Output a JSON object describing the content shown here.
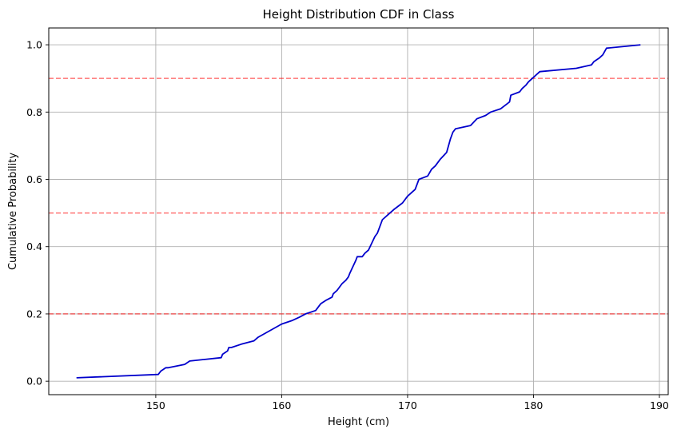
{
  "chart_data": {
    "type": "line",
    "title": "Height Distribution CDF in Class",
    "xlabel": "Height (cm)",
    "ylabel": "Cumulative Probability",
    "xlim": [
      141.5,
      190.7
    ],
    "ylim": [
      -0.04,
      1.05
    ],
    "grid": true,
    "x_ticks": [
      150,
      160,
      170,
      180,
      190
    ],
    "y_ticks": [
      0.0,
      0.2,
      0.4,
      0.6,
      0.8,
      1.0
    ],
    "x_tick_labels": [
      "150",
      "160",
      "170",
      "180",
      "190"
    ],
    "y_tick_labels": [
      "0.0",
      "0.2",
      "0.4",
      "0.6",
      "0.8",
      "1.0"
    ],
    "reference_lines": [
      {
        "y": 0.2,
        "color": "#ff0000",
        "style": "dashed"
      },
      {
        "y": 0.5,
        "color": "#ff0000",
        "style": "dashed"
      },
      {
        "y": 0.9,
        "color": "#ff0000",
        "style": "dashed"
      }
    ],
    "series": [
      {
        "color": "#0000cc",
        "x": [
          143.7,
          150.2,
          150.4,
          150.8,
          151.0,
          152.3,
          152.7,
          155.2,
          155.3,
          155.7,
          155.8,
          156.0,
          156.8,
          157.8,
          158.1,
          160.0,
          160.8,
          161.4,
          161.9,
          162.7,
          163.1,
          163.5,
          164.0,
          164.1,
          164.4,
          164.8,
          165.1,
          165.3,
          165.4,
          165.9,
          166.0,
          166.4,
          166.6,
          166.9,
          167.4,
          167.6,
          167.7,
          168.0,
          168.6,
          168.9,
          169.6,
          170.0,
          170.6,
          170.9,
          171.6,
          171.9,
          172.2,
          172.6,
          173.1,
          173.4,
          173.6,
          173.8,
          175.0,
          175.5,
          176.2,
          176.6,
          177.4,
          178.1,
          178.2,
          178.9,
          179.1,
          179.4,
          179.6,
          180.5,
          183.4,
          184.6,
          184.8,
          185.2,
          185.5,
          185.8,
          188.5
        ],
        "y": [
          0.01,
          0.02,
          0.03,
          0.04,
          0.04,
          0.05,
          0.06,
          0.07,
          0.08,
          0.09,
          0.1,
          0.1,
          0.11,
          0.12,
          0.13,
          0.17,
          0.18,
          0.19,
          0.2,
          0.21,
          0.23,
          0.24,
          0.25,
          0.26,
          0.27,
          0.29,
          0.3,
          0.31,
          0.32,
          0.36,
          0.37,
          0.37,
          0.38,
          0.39,
          0.43,
          0.44,
          0.45,
          0.48,
          0.5,
          0.51,
          0.53,
          0.55,
          0.57,
          0.6,
          0.61,
          0.63,
          0.64,
          0.66,
          0.68,
          0.72,
          0.74,
          0.75,
          0.76,
          0.78,
          0.79,
          0.8,
          0.81,
          0.83,
          0.85,
          0.86,
          0.87,
          0.88,
          0.89,
          0.92,
          0.93,
          0.94,
          0.95,
          0.96,
          0.97,
          0.99,
          1.0
        ]
      }
    ]
  }
}
